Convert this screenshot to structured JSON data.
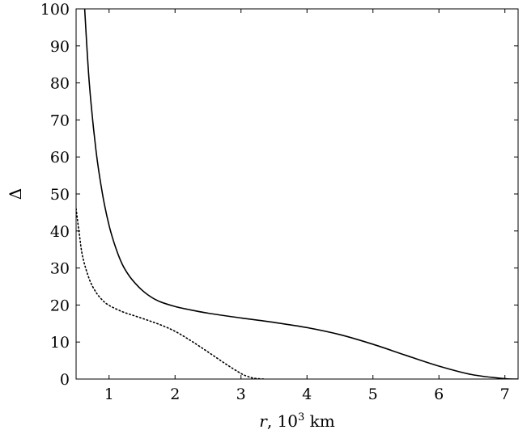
{
  "chart_data": {
    "type": "line",
    "title": "",
    "xlabel": {
      "var": "r",
      "rest": ", 10",
      "exp": "3",
      "unit": " km"
    },
    "ylabel": "Δ",
    "xlim": [
      0.5,
      7.2
    ],
    "ylim": [
      0,
      100
    ],
    "xticks": [
      1,
      2,
      3,
      4,
      5,
      6,
      7
    ],
    "xtick_labels": [
      "1",
      "2",
      "3",
      "4",
      "5",
      "6",
      "7"
    ],
    "yticks": [
      0,
      10,
      20,
      30,
      40,
      50,
      60,
      70,
      80,
      90,
      100
    ],
    "ytick_labels": [
      "0",
      "10",
      "20",
      "30",
      "40",
      "50",
      "60",
      "70",
      "80",
      "90",
      "100"
    ],
    "grid": false,
    "legend": "none",
    "series": [
      {
        "style": "solid",
        "color": "#000000",
        "x": [
          0.63,
          0.7,
          0.8,
          0.9,
          1.0,
          1.1,
          1.2,
          1.3,
          1.4,
          1.5,
          1.6,
          1.7,
          1.8,
          2.0,
          2.2,
          2.5,
          3.0,
          3.5,
          4.0,
          4.5,
          5.0,
          5.5,
          6.0,
          6.5,
          7.0,
          7.2
        ],
        "y": [
          100,
          80,
          62,
          50,
          41.5,
          35.5,
          31,
          28,
          25.8,
          24,
          22.6,
          21.5,
          20.7,
          19.6,
          18.8,
          17.8,
          16.5,
          15.3,
          13.9,
          12,
          9.4,
          6.4,
          3.5,
          1.2,
          0.1,
          0
        ]
      },
      {
        "style": "dotted",
        "color": "#000000",
        "x": [
          0.5,
          0.55,
          0.6,
          0.7,
          0.8,
          0.9,
          1.0,
          1.2,
          1.4,
          1.6,
          1.8,
          2.0,
          2.2,
          2.4,
          2.6,
          2.8,
          3.0,
          3.1,
          3.2,
          3.35
        ],
        "y": [
          46,
          39,
          33,
          27,
          23.5,
          21.3,
          19.9,
          18.2,
          17,
          15.8,
          14.5,
          12.9,
          10.8,
          8.5,
          6.1,
          3.7,
          1.5,
          0.7,
          0.2,
          0
        ]
      }
    ]
  }
}
